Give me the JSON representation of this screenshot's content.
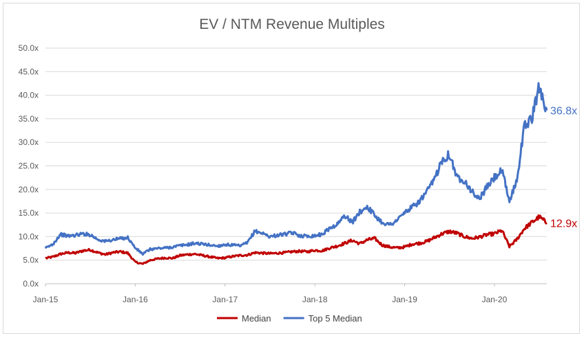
{
  "chart_data": {
    "type": "line",
    "title": "EV / NTM Revenue Multiples",
    "xlabel": "",
    "ylabel": "",
    "ylim": [
      0,
      50
    ],
    "yticks": [
      "0.0x",
      "5.0x",
      "10.0x",
      "15.0x",
      "20.0x",
      "25.0x",
      "30.0x",
      "35.0x",
      "40.0x",
      "45.0x",
      "50.0x"
    ],
    "xticks": [
      "Jan-15",
      "Jan-16",
      "Jan-17",
      "Jan-18",
      "Jan-19",
      "Jan-20"
    ],
    "xlim": [
      "2015-01",
      "2020-08"
    ],
    "grid": true,
    "legend": "bottom",
    "series": [
      {
        "name": "Median",
        "color": "#c00000",
        "end_label": "12.9x",
        "points": [
          [
            "2015-01",
            5.4
          ],
          [
            "2015-02",
            5.7
          ],
          [
            "2015-03",
            6.3
          ],
          [
            "2015-04",
            6.6
          ],
          [
            "2015-05",
            6.5
          ],
          [
            "2015-06",
            7.0
          ],
          [
            "2015-07",
            7.2
          ],
          [
            "2015-08",
            6.6
          ],
          [
            "2015-09",
            6.2
          ],
          [
            "2015-10",
            6.6
          ],
          [
            "2015-11",
            6.8
          ],
          [
            "2015-12",
            6.5
          ],
          [
            "2016-01",
            4.6
          ],
          [
            "2016-02",
            4.2
          ],
          [
            "2016-03",
            5.0
          ],
          [
            "2016-04",
            5.3
          ],
          [
            "2016-05",
            5.5
          ],
          [
            "2016-06",
            5.4
          ],
          [
            "2016-07",
            6.0
          ],
          [
            "2016-08",
            6.2
          ],
          [
            "2016-09",
            6.3
          ],
          [
            "2016-10",
            6.0
          ],
          [
            "2016-11",
            5.7
          ],
          [
            "2016-12",
            5.4
          ],
          [
            "2017-01",
            5.5
          ],
          [
            "2017-02",
            5.8
          ],
          [
            "2017-03",
            6.0
          ],
          [
            "2017-04",
            6.1
          ],
          [
            "2017-05",
            6.6
          ],
          [
            "2017-06",
            6.5
          ],
          [
            "2017-07",
            6.4
          ],
          [
            "2017-08",
            6.5
          ],
          [
            "2017-09",
            6.6
          ],
          [
            "2017-10",
            6.8
          ],
          [
            "2017-11",
            6.9
          ],
          [
            "2017-12",
            6.8
          ],
          [
            "2018-01",
            7.1
          ],
          [
            "2018-02",
            7.0
          ],
          [
            "2018-03",
            7.6
          ],
          [
            "2018-04",
            8.0
          ],
          [
            "2018-05",
            8.6
          ],
          [
            "2018-06",
            9.2
          ],
          [
            "2018-07",
            8.5
          ],
          [
            "2018-08",
            9.3
          ],
          [
            "2018-09",
            9.6
          ],
          [
            "2018-10",
            8.2
          ],
          [
            "2018-11",
            7.8
          ],
          [
            "2018-12",
            7.6
          ],
          [
            "2019-01",
            7.8
          ],
          [
            "2019-02",
            8.4
          ],
          [
            "2019-03",
            8.6
          ],
          [
            "2019-04",
            9.0
          ],
          [
            "2019-05",
            9.8
          ],
          [
            "2019-06",
            10.6
          ],
          [
            "2019-07",
            11.1
          ],
          [
            "2019-08",
            10.7
          ],
          [
            "2019-09",
            10.0
          ],
          [
            "2019-10",
            9.6
          ],
          [
            "2019-11",
            9.9
          ],
          [
            "2019-12",
            10.4
          ],
          [
            "2020-01",
            10.6
          ],
          [
            "2020-02",
            11.3
          ],
          [
            "2020-03",
            7.9
          ],
          [
            "2020-04",
            9.4
          ],
          [
            "2020-05",
            11.7
          ],
          [
            "2020-06",
            13.0
          ],
          [
            "2020-07",
            14.2
          ],
          [
            "2020-08",
            12.9
          ]
        ]
      },
      {
        "name": "Top 5 Median",
        "color": "#4472c4",
        "end_label": "36.8x",
        "points": [
          [
            "2015-01",
            7.5
          ],
          [
            "2015-02",
            8.4
          ],
          [
            "2015-03",
            10.5
          ],
          [
            "2015-04",
            10.1
          ],
          [
            "2015-05",
            10.3
          ],
          [
            "2015-06",
            10.6
          ],
          [
            "2015-07",
            10.4
          ],
          [
            "2015-08",
            9.4
          ],
          [
            "2015-09",
            9.0
          ],
          [
            "2015-10",
            9.3
          ],
          [
            "2015-11",
            9.6
          ],
          [
            "2015-12",
            9.8
          ],
          [
            "2016-01",
            7.6
          ],
          [
            "2016-02",
            6.3
          ],
          [
            "2016-03",
            7.3
          ],
          [
            "2016-04",
            7.5
          ],
          [
            "2016-05",
            7.6
          ],
          [
            "2016-06",
            7.8
          ],
          [
            "2016-07",
            8.1
          ],
          [
            "2016-08",
            8.3
          ],
          [
            "2016-09",
            8.6
          ],
          [
            "2016-10",
            8.4
          ],
          [
            "2016-11",
            8.2
          ],
          [
            "2016-12",
            8.0
          ],
          [
            "2017-01",
            8.3
          ],
          [
            "2017-02",
            8.2
          ],
          [
            "2017-03",
            8.0
          ],
          [
            "2017-04",
            8.7
          ],
          [
            "2017-05",
            11.2
          ],
          [
            "2017-06",
            10.7
          ],
          [
            "2017-07",
            10.0
          ],
          [
            "2017-08",
            10.3
          ],
          [
            "2017-09",
            10.5
          ],
          [
            "2017-10",
            10.8
          ],
          [
            "2017-11",
            10.2
          ],
          [
            "2017-12",
            10.1
          ],
          [
            "2018-01",
            10.2
          ],
          [
            "2018-02",
            10.5
          ],
          [
            "2018-03",
            11.8
          ],
          [
            "2018-04",
            12.6
          ],
          [
            "2018-05",
            14.5
          ],
          [
            "2018-06",
            13.0
          ],
          [
            "2018-07",
            15.2
          ],
          [
            "2018-08",
            16.4
          ],
          [
            "2018-09",
            14.5
          ],
          [
            "2018-10",
            13.0
          ],
          [
            "2018-11",
            12.5
          ],
          [
            "2018-12",
            13.5
          ],
          [
            "2019-01",
            15.1
          ],
          [
            "2019-02",
            16.2
          ],
          [
            "2019-03",
            17.5
          ],
          [
            "2019-04",
            19.5
          ],
          [
            "2019-05",
            22.2
          ],
          [
            "2019-06",
            26.3
          ],
          [
            "2019-07",
            27.5
          ],
          [
            "2019-08",
            22.5
          ],
          [
            "2019-09",
            22.0
          ],
          [
            "2019-10",
            19.5
          ],
          [
            "2019-11",
            18.0
          ],
          [
            "2019-12",
            20.5
          ],
          [
            "2020-01",
            22.5
          ],
          [
            "2020-02",
            24.0
          ],
          [
            "2020-03",
            17.5
          ],
          [
            "2020-04",
            22.0
          ],
          [
            "2020-05",
            33.5
          ],
          [
            "2020-06",
            35.0
          ],
          [
            "2020-07",
            42.0
          ],
          [
            "2020-08",
            36.8
          ]
        ]
      }
    ]
  }
}
